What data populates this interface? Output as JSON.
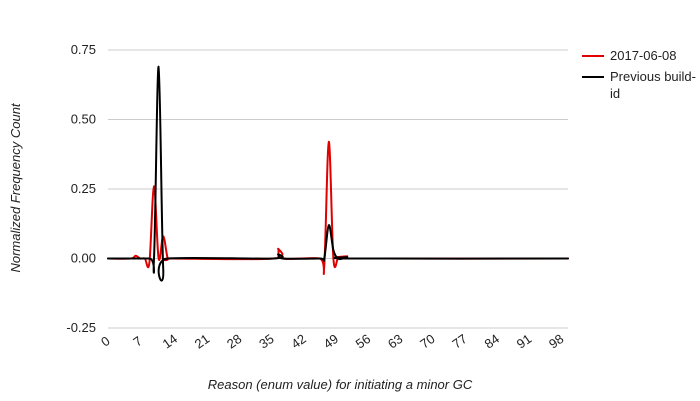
{
  "chart_data": {
    "type": "line",
    "title": "",
    "xlabel": "Reason (enum value) for initiating a minor GC",
    "ylabel": "Normalized Frequency Count",
    "xlim": [
      0,
      100
    ],
    "ylim": [
      -0.25,
      0.75
    ],
    "x_ticks": [
      "0",
      "7",
      "14",
      "21",
      "28",
      "35",
      "42",
      "49",
      "56",
      "63",
      "70",
      "77",
      "84",
      "91",
      "98"
    ],
    "y_ticks": [
      "0.75",
      "0.50",
      "0.25",
      "0.00",
      "-0.25"
    ],
    "grid": true,
    "legend_position": "right",
    "series": [
      {
        "name": "2017-06-08",
        "color": "#e00000",
        "points": [
          [
            0,
            0.0
          ],
          [
            5,
            0.0
          ],
          [
            6,
            0.01
          ],
          [
            7,
            0.0
          ],
          [
            8,
            0.0
          ],
          [
            9,
            -0.015
          ],
          [
            10,
            0.26
          ],
          [
            11,
            0.0
          ],
          [
            12,
            0.08
          ],
          [
            13,
            0.0
          ],
          [
            14,
            0.0
          ],
          [
            36,
            0.0
          ],
          [
            37,
            0.035
          ],
          [
            38,
            0.0
          ],
          [
            46,
            0.0
          ],
          [
            47,
            -0.03
          ],
          [
            48,
            0.42
          ],
          [
            49,
            0.0
          ],
          [
            50,
            0.0
          ],
          [
            51,
            0.0
          ],
          [
            52,
            0.008
          ],
          [
            53,
            0.0
          ],
          [
            100,
            0.0
          ]
        ]
      },
      {
        "name": "Previous build-id",
        "color": "#000000",
        "points": [
          [
            0,
            0.0
          ],
          [
            9,
            0.0
          ],
          [
            10,
            0.0
          ],
          [
            11,
            0.69
          ],
          [
            12,
            -0.035
          ],
          [
            13,
            0.0
          ],
          [
            36,
            0.0
          ],
          [
            37,
            0.015
          ],
          [
            38,
            0.0
          ],
          [
            46,
            0.0
          ],
          [
            47,
            0.0
          ],
          [
            48,
            0.12
          ],
          [
            49,
            0.03
          ],
          [
            50,
            0.0
          ],
          [
            51,
            0.0
          ],
          [
            52,
            0.005
          ],
          [
            53,
            0.0
          ],
          [
            100,
            0.0
          ]
        ]
      }
    ]
  }
}
